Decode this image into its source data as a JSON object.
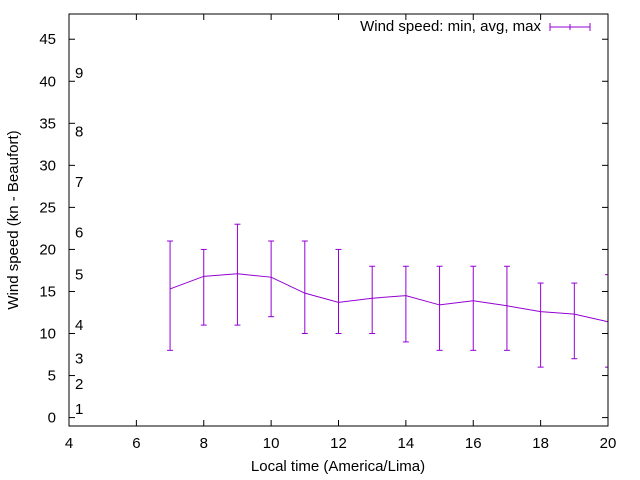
{
  "chart_data": {
    "type": "line",
    "xlabel": "Local time (America/Lima)",
    "ylabel": "Wind speed (kn - Beaufort)",
    "xlim": [
      4,
      20
    ],
    "ylim": [
      -1,
      48
    ],
    "x_ticks": [
      "4",
      "6",
      "8",
      "10",
      "12",
      "14",
      "16",
      "18",
      "20"
    ],
    "y_ticks": [
      "0",
      "5",
      "10",
      "15",
      "20",
      "25",
      "30",
      "35",
      "40",
      "45"
    ],
    "beaufort_labels": [
      {
        "label": "1",
        "y": 1
      },
      {
        "label": "2",
        "y": 4
      },
      {
        "label": "3",
        "y": 7
      },
      {
        "label": "4",
        "y": 11
      },
      {
        "label": "5",
        "y": 17
      },
      {
        "label": "6",
        "y": 22
      },
      {
        "label": "7",
        "y": 28
      },
      {
        "label": "8",
        "y": 34
      },
      {
        "label": "9",
        "y": 41
      }
    ],
    "legend_position": "top-right",
    "grid": false,
    "series": [
      {
        "name": "Wind speed: min, avg, max",
        "color": "#9400d3",
        "x": [
          7,
          8,
          9,
          10,
          11,
          12,
          13,
          14,
          15,
          16,
          17,
          18,
          19,
          20
        ],
        "avg": [
          15.3,
          16.8,
          17.1,
          16.7,
          14.8,
          13.7,
          14.2,
          14.5,
          13.4,
          13.9,
          13.3,
          12.6,
          12.3,
          11.4
        ],
        "min": [
          8,
          11,
          11,
          12,
          10,
          10,
          10,
          9,
          8,
          8,
          8,
          6,
          7,
          6
        ],
        "max": [
          21,
          20,
          23,
          21,
          21,
          20,
          18,
          18,
          18,
          18,
          18,
          16,
          16,
          17
        ]
      }
    ]
  }
}
